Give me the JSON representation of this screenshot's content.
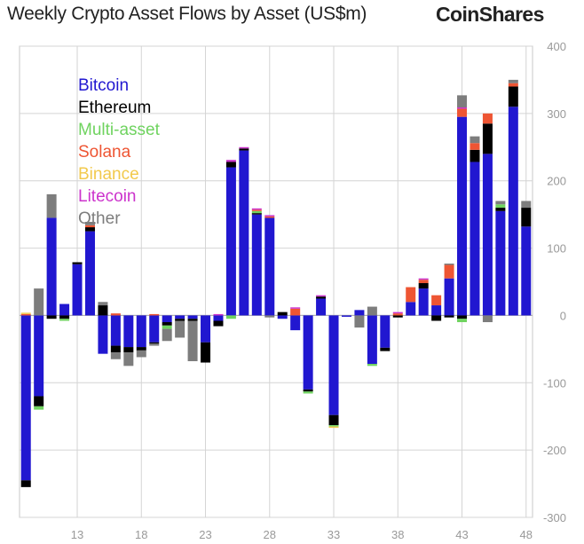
{
  "header": {
    "title": "Weekly Crypto Asset Flows by Asset (US$m)",
    "brand": "CoinShares"
  },
  "colors": {
    "Bitcoin": "#2117d0",
    "Ethereum": "#000000",
    "Multi-asset": "#6fd35f",
    "Solana": "#ee5533",
    "Binance": "#f2c94c",
    "Litecoin": "#cc33cc",
    "Other": "#7d7d7d"
  },
  "chart_data": {
    "type": "bar",
    "stacked": true,
    "title": "Weekly Crypto Asset Flows by Asset (US$m)",
    "xlabel": "",
    "ylabel": "",
    "ylim": [
      -300,
      400
    ],
    "yticks": [
      -300,
      -200,
      -100,
      0,
      100,
      200,
      300,
      400
    ],
    "y_axis_side": "right",
    "grid": true,
    "legend_position": "top-left",
    "x_ticks": [
      "13",
      "18",
      "23",
      "28",
      "33",
      "38",
      "43",
      "48"
    ],
    "x_tick_values": [
      13,
      18,
      23,
      28,
      33,
      38,
      43,
      48
    ],
    "x": [
      9,
      10,
      11,
      12,
      13,
      14,
      15,
      16,
      17,
      18,
      19,
      20,
      21,
      22,
      23,
      24,
      25,
      26,
      27,
      28,
      29,
      30,
      31,
      32,
      33,
      34,
      35,
      36,
      37,
      38,
      39,
      40,
      41,
      42,
      43,
      44,
      45,
      46,
      47,
      48
    ],
    "series": [
      {
        "name": "Bitcoin",
        "values": [
          -245,
          -120,
          145,
          17,
          76,
          125,
          -57,
          -45,
          -47,
          -47,
          -40,
          -10,
          -5,
          -5,
          -40,
          -8,
          220,
          245,
          150,
          145,
          -5,
          -22,
          -110,
          25,
          -148,
          -2,
          8,
          -72,
          -48,
          0,
          20,
          40,
          15,
          55,
          295,
          228,
          240,
          155,
          310,
          132
        ]
      },
      {
        "name": "Ethereum",
        "values": [
          -10,
          -15,
          -5,
          -5,
          3,
          6,
          15,
          -10,
          -8,
          -5,
          -2,
          -5,
          -3,
          -3,
          -30,
          -8,
          8,
          3,
          2,
          0,
          5,
          0,
          -3,
          3,
          -15,
          0,
          0,
          0,
          -5,
          -3,
          0,
          8,
          -8,
          -3,
          -5,
          18,
          45,
          5,
          30,
          28
        ]
      },
      {
        "name": "Multi-asset",
        "values": [
          0,
          -5,
          0,
          -3,
          0,
          0,
          0,
          0,
          0,
          0,
          0,
          -5,
          0,
          0,
          0,
          0,
          -5,
          0,
          3,
          0,
          0,
          0,
          -3,
          0,
          -2,
          0,
          0,
          -3,
          0,
          0,
          0,
          0,
          0,
          0,
          -5,
          0,
          0,
          5,
          0,
          0
        ]
      },
      {
        "name": "Solana",
        "values": [
          2,
          0,
          0,
          0,
          0,
          3,
          0,
          3,
          0,
          0,
          2,
          0,
          0,
          0,
          0,
          0,
          0,
          0,
          2,
          2,
          0,
          10,
          0,
          0,
          0,
          0,
          0,
          0,
          0,
          3,
          22,
          5,
          15,
          20,
          12,
          10,
          15,
          0,
          5,
          0
        ]
      },
      {
        "name": "Binance",
        "values": [
          2,
          0,
          0,
          0,
          0,
          0,
          0,
          0,
          0,
          0,
          0,
          0,
          0,
          0,
          0,
          0,
          0,
          0,
          0,
          0,
          0,
          0,
          0,
          0,
          -2,
          0,
          0,
          0,
          0,
          0,
          0,
          0,
          0,
          0,
          0,
          0,
          0,
          0,
          0,
          0
        ]
      },
      {
        "name": "Litecoin",
        "values": [
          0,
          0,
          0,
          0,
          0,
          0,
          0,
          0,
          0,
          0,
          0,
          0,
          0,
          0,
          0,
          2,
          3,
          2,
          2,
          2,
          0,
          2,
          0,
          2,
          0,
          0,
          0,
          0,
          0,
          2,
          0,
          2,
          0,
          0,
          2,
          0,
          0,
          0,
          0,
          0
        ]
      },
      {
        "name": "Other",
        "values": [
          0,
          40,
          35,
          0,
          0,
          5,
          5,
          -10,
          -20,
          -10,
          -3,
          -18,
          -25,
          -60,
          0,
          0,
          0,
          0,
          0,
          -3,
          0,
          0,
          0,
          0,
          0,
          0,
          -18,
          13,
          0,
          0,
          0,
          0,
          0,
          2,
          18,
          10,
          -10,
          5,
          5,
          10
        ]
      }
    ]
  }
}
